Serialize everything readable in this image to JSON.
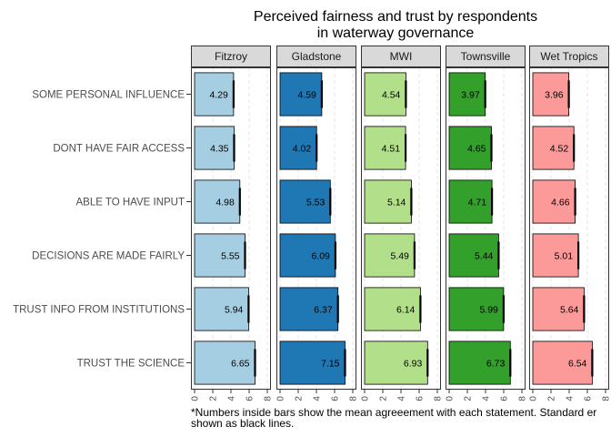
{
  "chart_data": {
    "type": "bar",
    "orientation": "horizontal",
    "title_lines": [
      "Perceived fairness and trust by respondents",
      "in waterway governance"
    ],
    "categories": [
      "SOME PERSONAL INFLUENCE",
      "DONT HAVE FAIR ACCESS",
      "ABLE TO HAVE INPUT",
      "DECISIONS ARE MADE FAIRLY",
      "TRUST INFO FROM INSTITUTIONS",
      "TRUST THE SCIENCE"
    ],
    "xlim": [
      0,
      8
    ],
    "x_ticks": [
      0,
      2,
      4,
      6,
      8
    ],
    "grid": true,
    "facets": [
      {
        "name": "Fitzroy",
        "color": "#a6cee3",
        "values": [
          4.29,
          4.35,
          4.98,
          5.55,
          5.94,
          6.65
        ],
        "labels": [
          "4.29",
          "4.35",
          "4.98",
          "5.55",
          "5.94",
          "6.65"
        ]
      },
      {
        "name": "Gladstone",
        "color": "#1f78b4",
        "values": [
          4.59,
          4.02,
          5.53,
          6.09,
          6.37,
          7.15
        ],
        "labels": [
          "4.59",
          "4.02",
          "5.53",
          "6.09",
          "6.37",
          "7.15"
        ]
      },
      {
        "name": "MWI",
        "color": "#b2df8a",
        "values": [
          4.54,
          4.51,
          5.14,
          5.49,
          6.14,
          6.93
        ],
        "labels": [
          "4.54",
          "4.51",
          "5.14",
          "5.49",
          "6.14",
          "6.93"
        ]
      },
      {
        "name": "Townsville",
        "color": "#33a02c",
        "values": [
          3.97,
          4.65,
          4.71,
          5.44,
          5.99,
          6.73
        ],
        "labels": [
          "3.97",
          "4.65",
          "4.71",
          "5.44",
          "5.99",
          "6.73"
        ]
      },
      {
        "name": "Wet Tropics",
        "color": "#fb9a99",
        "values": [
          3.96,
          4.52,
          4.66,
          5.01,
          5.64,
          6.54
        ],
        "labels": [
          "3.96",
          "4.52",
          "4.66",
          "5.01",
          "5.64",
          "6.54"
        ]
      }
    ]
  },
  "caption": {
    "line1": "*Numbers inside bars show the mean agreeement with each statement. Standard er",
    "line2": "shown as black lines."
  }
}
